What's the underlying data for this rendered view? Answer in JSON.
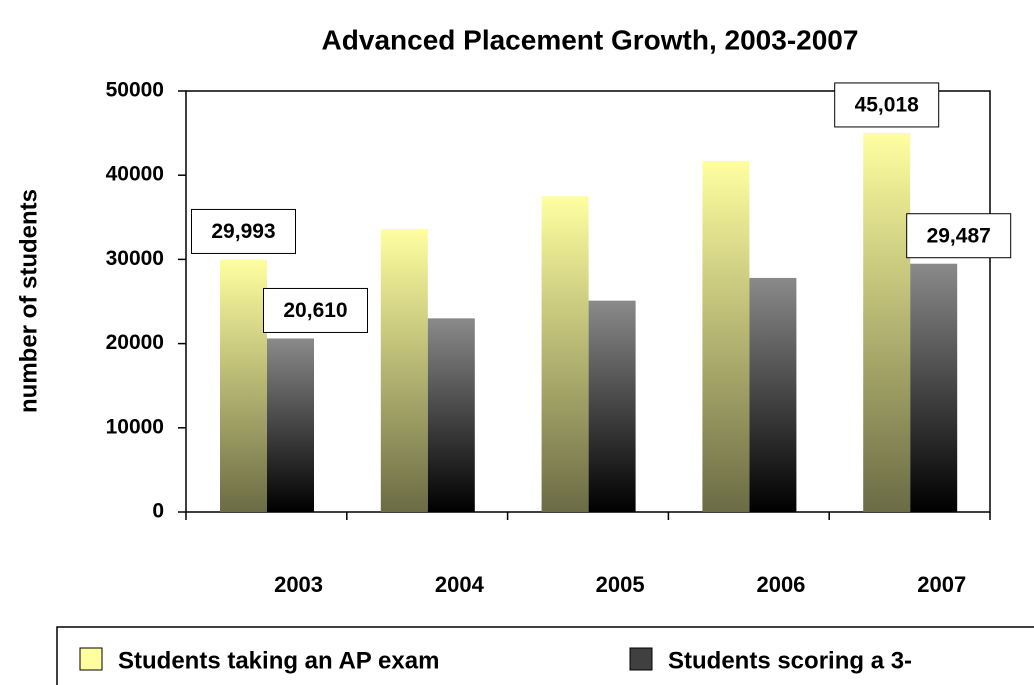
{
  "chart_data": {
    "type": "bar",
    "title": "Advanced Placement Growth, 2003-2007",
    "y_label": "number of students",
    "categories": [
      "2003",
      "2004",
      "2005",
      "2006",
      "2007"
    ],
    "series": [
      {
        "name": "Students taking an AP exam",
        "color": "#ffffa0",
        "values": [
          29993,
          33600,
          37500,
          41700,
          45018
        ],
        "value_labels": [
          "29,993",
          null,
          null,
          null,
          "45,018"
        ]
      },
      {
        "name": "Students scoring a 3-",
        "color": "#404040",
        "values": [
          20610,
          23000,
          25100,
          27800,
          29487
        ],
        "value_labels": [
          "20,610",
          null,
          null,
          null,
          "29,487"
        ]
      }
    ],
    "ylim": [
      0,
      50000
    ],
    "yticks": [
      0,
      10000,
      20000,
      30000,
      40000,
      50000
    ],
    "legend": "bottom"
  }
}
